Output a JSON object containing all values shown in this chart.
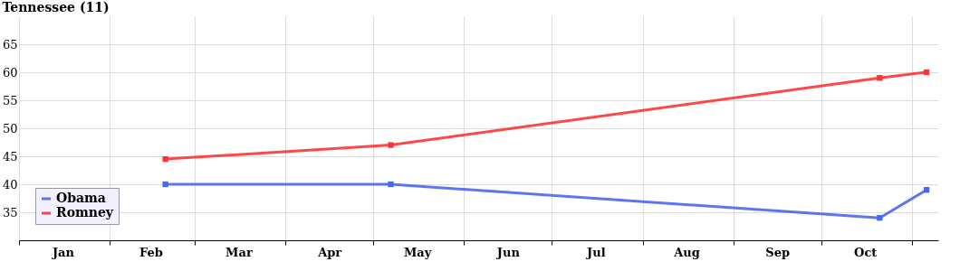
{
  "chart_data": {
    "type": "line",
    "title": "Tennessee (11)",
    "x": [
      "--02-20",
      "--05-07",
      "--10-21",
      "--11-06"
    ],
    "series": [
      {
        "name": "Obama",
        "color": "#4a67f0",
        "values": [
          40,
          40,
          34,
          39
        ]
      },
      {
        "name": "Romney",
        "color": "#ff3333",
        "values": [
          44.5,
          47,
          59,
          60
        ]
      }
    ],
    "xlim": [
      "--01-01",
      "--11-10"
    ],
    "xticks": [
      {
        "value": "--01-01",
        "label": null
      },
      {
        "value": "--01-16",
        "label": "Jan"
      },
      {
        "value": "--02-01",
        "label": null
      },
      {
        "value": "--02-15",
        "label": "Feb"
      },
      {
        "value": "--03-01",
        "label": null
      },
      {
        "value": "--03-16",
        "label": "Mar"
      },
      {
        "value": "--04-01",
        "label": null
      },
      {
        "value": "--04-16",
        "label": "Apr"
      },
      {
        "value": "--05-01",
        "label": null
      },
      {
        "value": "--05-16",
        "label": "May"
      },
      {
        "value": "--06-01",
        "label": null
      },
      {
        "value": "--06-16",
        "label": "Jun"
      },
      {
        "value": "--07-01",
        "label": null
      },
      {
        "value": "--07-16",
        "label": "Jul"
      },
      {
        "value": "--08-01",
        "label": null
      },
      {
        "value": "--08-16",
        "label": "Aug"
      },
      {
        "value": "--09-01",
        "label": null
      },
      {
        "value": "--09-16",
        "label": "Sep"
      },
      {
        "value": "--10-01",
        "label": null
      },
      {
        "value": "--10-16",
        "label": "Oct"
      },
      {
        "value": "--11-01",
        "label": null
      }
    ],
    "ylim": [
      30,
      70
    ],
    "yticks": [
      35,
      40,
      45,
      50,
      55,
      60,
      65
    ],
    "grid": true,
    "legend": "bottom left",
    "marker": "square",
    "line_style": "solid"
  }
}
